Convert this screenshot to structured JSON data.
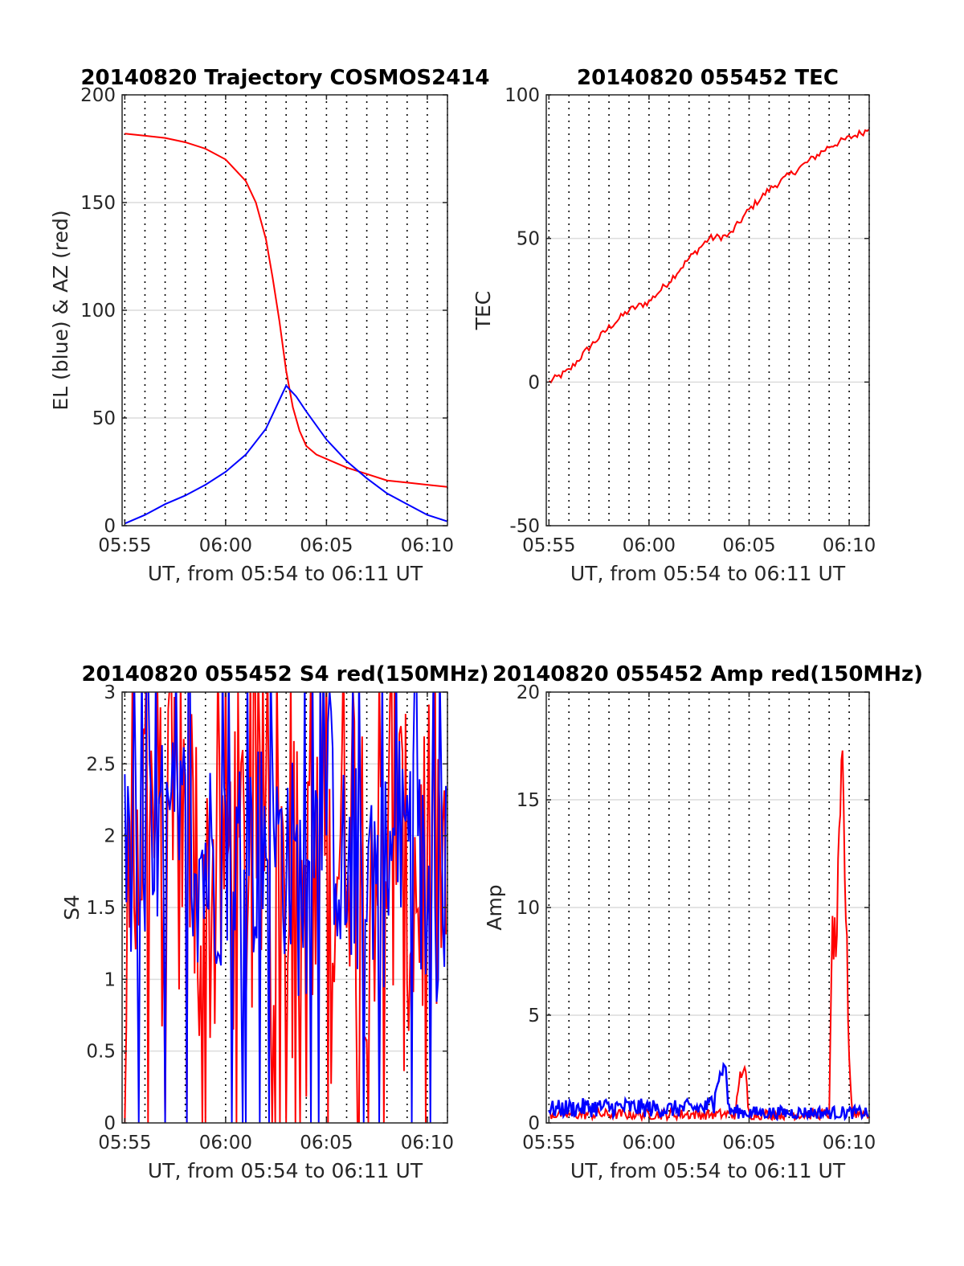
{
  "colors": {
    "red": "#ff0000",
    "blue": "#0000ff",
    "axis": "#262626",
    "grid": "#dcdcdc"
  },
  "chart_data": [
    {
      "id": "trajectory",
      "type": "line",
      "title": "20140820 Trajectory COSMOS2414",
      "xlabel": "UT, from 05:54 to 06:11 UT",
      "ylabel": "EL (blue) & AZ (red)",
      "xlim": [
        "05:54:52",
        "06:11:00"
      ],
      "ylim": [
        0,
        200
      ],
      "x_ticks": [
        "05:55",
        "06:00",
        "06:05",
        "06:10"
      ],
      "y_ticks": [
        "0",
        "50",
        "100",
        "150",
        "200"
      ],
      "grid": "on",
      "series": [
        {
          "color": "red",
          "x": [
            "05:55",
            "05:56",
            "05:57",
            "05:58",
            "05:59",
            "06:00",
            "06:01",
            "06:01:30",
            "06:02",
            "06:02:20",
            "06:02:40",
            "06:03",
            "06:03:20",
            "06:03:40",
            "06:04",
            "06:04:30",
            "06:05",
            "06:06",
            "06:07",
            "06:08",
            "06:09",
            "06:10",
            "06:11"
          ],
          "values": [
            182,
            181,
            180,
            178,
            175,
            170,
            160,
            150,
            133,
            115,
            95,
            72,
            55,
            44,
            37,
            33,
            31,
            27,
            24,
            21,
            20,
            19,
            18
          ]
        },
        {
          "color": "blue",
          "x": [
            "05:55",
            "05:56",
            "05:57",
            "05:58",
            "05:59",
            "06:00",
            "06:01",
            "06:02",
            "06:02:30",
            "06:03",
            "06:03:30",
            "06:04",
            "06:05",
            "06:06",
            "06:07",
            "06:08",
            "06:09",
            "06:10",
            "06:11"
          ],
          "values": [
            1,
            5,
            10,
            14,
            19,
            25,
            33,
            45,
            55,
            65,
            60,
            53,
            40,
            30,
            22,
            15,
            10,
            5,
            2
          ]
        }
      ]
    },
    {
      "id": "tec",
      "type": "line",
      "title": "20140820 055452 TEC",
      "xlabel": "UT, from 05:54 to 06:11 UT",
      "ylabel": "TEC",
      "xlim": [
        "05:54:52",
        "06:11:00"
      ],
      "ylim": [
        -50,
        100
      ],
      "x_ticks": [
        "05:55",
        "06:00",
        "06:05",
        "06:10"
      ],
      "y_ticks": [
        "-50",
        "0",
        "50",
        "100"
      ],
      "grid": "on",
      "series": [
        {
          "color": "red",
          "x": [
            "05:55",
            "05:56",
            "05:57",
            "05:58",
            "05:59",
            "06:00",
            "06:01",
            "06:02",
            "06:03",
            "06:04",
            "06:05",
            "06:06",
            "06:07",
            "06:08",
            "06:09",
            "06:10",
            "06:11"
          ],
          "values": [
            0,
            4,
            12,
            19,
            25,
            28,
            35,
            43,
            50,
            51,
            60,
            67,
            72,
            77,
            82,
            85,
            88
          ]
        }
      ]
    },
    {
      "id": "s4",
      "type": "line",
      "title": "20140820 055452 S4 red(150MHz)",
      "xlabel": "UT, from 05:54 to 06:11 UT",
      "ylabel": "S4",
      "xlim": [
        "05:54:52",
        "06:11:00"
      ],
      "ylim": [
        0,
        3
      ],
      "x_ticks": [
        "05:55",
        "06:00",
        "06:05",
        "06:10"
      ],
      "y_ticks": [
        "0",
        "0.5",
        "1",
        "1.5",
        "2",
        "2.5",
        "3"
      ],
      "grid": "on",
      "series": [
        {
          "color": "red",
          "x": [
            "05:55",
            "05:56",
            "05:57",
            "05:58",
            "05:59",
            "06:00",
            "06:01",
            "06:02",
            "06:03",
            "06:04",
            "06:05",
            "06:06",
            "06:07",
            "06:08",
            "06:09",
            "06:10",
            "06:11"
          ],
          "values": [
            1.6,
            2.2,
            1.8,
            2.1,
            1.5,
            1.9,
            1.7,
            2.0,
            1.6,
            1.4,
            1.3,
            2.4,
            1.8,
            2.2,
            1.5,
            1.9,
            1.7
          ]
        },
        {
          "color": "blue",
          "x": [
            "05:55",
            "05:56",
            "05:57",
            "05:58",
            "05:59",
            "06:00",
            "06:01",
            "06:02",
            "06:03",
            "06:04",
            "06:05",
            "06:06",
            "06:07",
            "06:08",
            "06:09",
            "06:10",
            "06:11"
          ],
          "values": [
            1.7,
            1.8,
            1.9,
            2.0,
            1.8,
            1.9,
            1.8,
            2.0,
            1.9,
            1.5,
            2.4,
            1.6,
            1.9,
            1.7,
            2.1,
            1.5,
            1.8
          ]
        }
      ]
    },
    {
      "id": "amp",
      "type": "line",
      "title": "20140820 055452 Amp red(150MHz)",
      "xlabel": "UT, from 05:54 to 06:11 UT",
      "ylabel": "Amp",
      "xlim": [
        "05:54:52",
        "06:11:00"
      ],
      "ylim": [
        0,
        20
      ],
      "x_ticks": [
        "05:55",
        "06:00",
        "06:05",
        "06:10"
      ],
      "y_ticks": [
        "0",
        "5",
        "10",
        "15",
        "20"
      ],
      "grid": "on",
      "series": [
        {
          "color": "red",
          "x": [
            "05:55",
            "06:04:20",
            "06:04:30",
            "06:04:40",
            "06:04:50",
            "06:05",
            "06:08",
            "06:09",
            "06:09:10",
            "06:09:20",
            "06:09:30",
            "06:09:40",
            "06:09:50",
            "06:10",
            "06:10:10",
            "06:11"
          ],
          "values": [
            0.5,
            0.5,
            2.0,
            2.5,
            2.2,
            0.5,
            0.5,
            0.5,
            9.0,
            8.0,
            12.0,
            16.1,
            10.0,
            3.0,
            0.6,
            0.5
          ]
        },
        {
          "color": "blue",
          "x": [
            "05:55",
            "05:57",
            "05:59",
            "06:01",
            "06:03",
            "06:03:40",
            "06:03:50",
            "06:04",
            "06:05",
            "06:07",
            "06:09",
            "06:11"
          ],
          "values": [
            0.8,
            0.9,
            0.9,
            0.8,
            0.9,
            2.5,
            2.6,
            0.7,
            0.6,
            0.6,
            0.6,
            0.6
          ]
        }
      ]
    }
  ]
}
